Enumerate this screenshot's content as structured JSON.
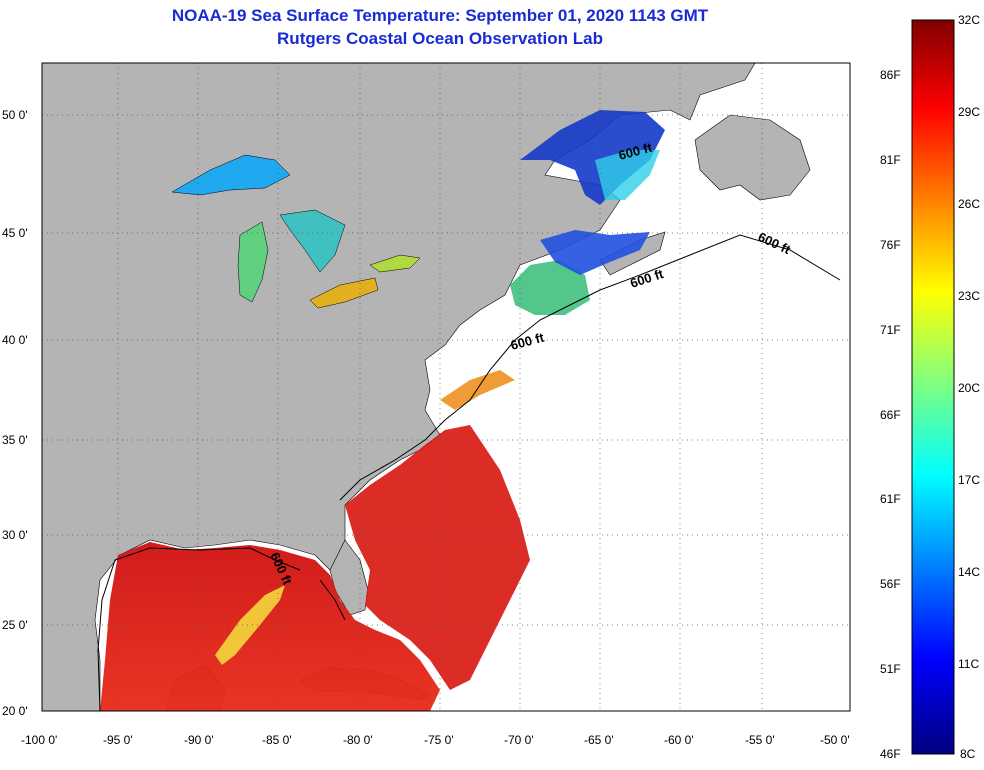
{
  "title": {
    "line1": "NOAA-19 Sea Surface Temperature:  September 01, 2020 1143 GMT",
    "line2": "Rutgers Coastal Ocean Observation Lab"
  },
  "map": {
    "lon_labels": [
      "-100 0'",
      "-95 0'",
      "-90 0'",
      "-85 0'",
      "-80 0'",
      "-75 0'",
      "-70 0'",
      "-65 0'",
      "-60 0'",
      "-55 0'",
      "-50 0'"
    ],
    "lat_labels": [
      "50 0'",
      "45 0'",
      "40 0'",
      "35 0'",
      "30 0'",
      "25 0'",
      "20 0'"
    ],
    "depth_contour_labels": [
      "600 ft",
      "600 ft",
      "600 ft",
      "600 ft",
      "600 ft"
    ],
    "land_color": "#b4b4b4",
    "no_data_color": "#ffffff",
    "grid_style": "dotted"
  },
  "colorbar": {
    "celsius_labels": [
      "32C",
      "29C",
      "26C",
      "23C",
      "20C",
      "17C",
      "14C",
      "11C",
      "8C"
    ],
    "fahrenheit_labels": [
      "86F",
      "81F",
      "76F",
      "71F",
      "66F",
      "61F",
      "56F",
      "51F",
      "46F"
    ],
    "range_c": [
      8,
      32
    ],
    "colormap": "jet"
  }
}
